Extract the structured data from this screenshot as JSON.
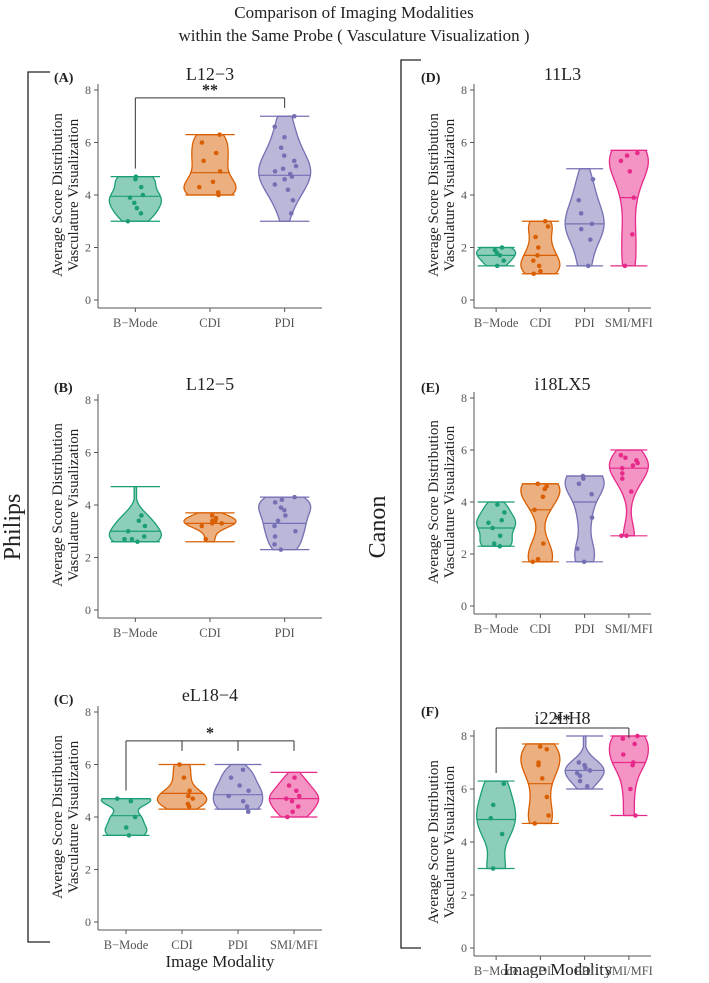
{
  "figure": {
    "title_line1": "Comparison of Imaging Modalities",
    "title_line2": "within the Same Probe ( Vasculature Visualization )",
    "left_group": "Philips",
    "right_group": "Canon",
    "ylabel_line1": "Average Score Distribution",
    "ylabel_line2": "Vasculature Visualization",
    "xlabel": "Image Modality"
  },
  "colors": {
    "B-Mode": "#1b9e77",
    "CDI": "#d95f02",
    "PDI": "#7570b3",
    "SMI/MFI": "#e7298a",
    "axis": "#555555",
    "text": "#222222"
  },
  "chart_data": [
    {
      "type": "violin",
      "panel": "(A)",
      "title": "L12−3",
      "ylim": [
        0,
        8
      ],
      "yticks": [
        0,
        2,
        4,
        6,
        8
      ],
      "categories": [
        "B−Mode",
        "CDI",
        "PDI"
      ],
      "series": [
        {
          "name": "B-Mode",
          "min": 3.0,
          "max": 4.7,
          "median": 3.95,
          "points": [
            3.0,
            3.3,
            3.5,
            3.7,
            3.9,
            4.0,
            4.3,
            4.6,
            4.7
          ]
        },
        {
          "name": "CDI",
          "min": 4.0,
          "max": 6.3,
          "median": 4.85,
          "points": [
            4.0,
            4.1,
            4.3,
            4.5,
            4.9,
            5.3,
            5.6,
            6.0,
            6.3
          ]
        },
        {
          "name": "PDI",
          "min": 3.0,
          "max": 7.0,
          "median": 4.75,
          "points": [
            3.3,
            3.8,
            4.2,
            4.4,
            4.6,
            4.7,
            4.8,
            4.9,
            5.0,
            5.1,
            5.3,
            5.5,
            5.8,
            6.2,
            6.6,
            7.0
          ]
        }
      ],
      "significance": [
        {
          "label": "**",
          "from": "B-Mode",
          "to": [
            "PDI"
          ],
          "level": 7.7
        }
      ]
    },
    {
      "type": "violin",
      "panel": "(B)",
      "title": "L12−5",
      "ylim": [
        0,
        8
      ],
      "yticks": [
        0,
        2,
        4,
        6,
        8
      ],
      "categories": [
        "B−Mode",
        "CDI",
        "PDI"
      ],
      "series": [
        {
          "name": "B-Mode",
          "min": 2.6,
          "max": 4.7,
          "median": 3.0,
          "points": [
            2.6,
            2.7,
            2.7,
            2.8,
            3.0,
            3.2,
            3.4,
            3.6
          ]
        },
        {
          "name": "CDI",
          "min": 2.6,
          "max": 3.7,
          "median": 3.3,
          "points": [
            2.7,
            3.2,
            3.3,
            3.3,
            3.4,
            3.4,
            3.5,
            3.6
          ]
        },
        {
          "name": "PDI",
          "min": 2.3,
          "max": 4.3,
          "median": 3.3,
          "points": [
            2.3,
            2.5,
            2.8,
            3.0,
            3.2,
            3.4,
            3.6,
            3.8,
            3.9,
            4.1,
            4.2,
            4.3
          ]
        }
      ],
      "significance": []
    },
    {
      "type": "violin",
      "panel": "(C)",
      "title": "eL18−4",
      "ylim": [
        0,
        8
      ],
      "yticks": [
        0,
        2,
        4,
        6,
        8
      ],
      "categories": [
        "B−Mode",
        "CDI",
        "PDI",
        "SMI/MFI"
      ],
      "series": [
        {
          "name": "B-Mode",
          "min": 3.3,
          "max": 4.7,
          "median": 4.05,
          "points": [
            3.3,
            3.6,
            4.0,
            4.6,
            4.7
          ]
        },
        {
          "name": "CDI",
          "min": 4.3,
          "max": 6.0,
          "median": 4.9,
          "points": [
            4.4,
            4.5,
            4.7,
            4.8,
            5.0,
            5.5,
            6.0
          ]
        },
        {
          "name": "PDI",
          "min": 4.3,
          "max": 6.0,
          "median": 4.85,
          "points": [
            4.2,
            4.4,
            4.6,
            4.8,
            5.0,
            5.2,
            5.5,
            5.8
          ]
        },
        {
          "name": "SMI/MFI",
          "min": 4.0,
          "max": 5.7,
          "median": 4.7,
          "points": [
            4.0,
            4.2,
            4.4,
            4.6,
            4.7,
            4.8,
            5.0,
            5.2,
            5.5
          ]
        }
      ],
      "significance": [
        {
          "label": "*",
          "from": "B-Mode",
          "to": [
            "CDI",
            "PDI",
            "SMI/MFI"
          ],
          "level": 6.9
        }
      ]
    },
    {
      "type": "violin",
      "panel": "(D)",
      "title": "11L3",
      "ylim": [
        0,
        8
      ],
      "yticks": [
        0,
        2,
        4,
        6,
        8
      ],
      "categories": [
        "B−Mode",
        "CDI",
        "PDI",
        "SMI/MFI"
      ],
      "series": [
        {
          "name": "B-Mode",
          "min": 1.3,
          "max": 2.0,
          "median": 1.7,
          "points": [
            1.3,
            1.5,
            1.7,
            1.8,
            1.9,
            2.0
          ]
        },
        {
          "name": "CDI",
          "min": 1.0,
          "max": 3.0,
          "median": 1.7,
          "points": [
            1.0,
            1.1,
            1.3,
            1.5,
            1.7,
            2.0,
            2.4,
            2.8,
            3.0
          ]
        },
        {
          "name": "PDI",
          "min": 1.3,
          "max": 5.0,
          "median": 2.9,
          "points": [
            1.3,
            2.3,
            2.7,
            2.9,
            3.3,
            3.8,
            4.6
          ]
        },
        {
          "name": "SMI/MFI",
          "min": 1.3,
          "max": 5.7,
          "median": 3.9,
          "points": [
            1.3,
            2.5,
            3.9,
            4.9,
            5.3,
            5.5,
            5.6
          ]
        }
      ],
      "significance": []
    },
    {
      "type": "violin",
      "panel": "(E)",
      "title": "i18LX5",
      "ylim": [
        0,
        8
      ],
      "yticks": [
        0,
        2,
        4,
        6,
        8
      ],
      "categories": [
        "B−Mode",
        "CDI",
        "PDI",
        "SMI/MFI"
      ],
      "series": [
        {
          "name": "B-Mode",
          "min": 2.3,
          "max": 4.0,
          "median": 3.0,
          "points": [
            2.3,
            2.4,
            2.7,
            3.0,
            3.2,
            3.3,
            3.6,
            3.9
          ]
        },
        {
          "name": "CDI",
          "min": 1.7,
          "max": 4.7,
          "median": 3.7,
          "points": [
            1.7,
            1.8,
            2.4,
            3.7,
            4.2,
            4.5,
            4.6,
            4.7
          ]
        },
        {
          "name": "PDI",
          "min": 1.7,
          "max": 5.0,
          "median": 4.0,
          "points": [
            1.7,
            2.2,
            3.4,
            4.3,
            4.7,
            4.9,
            5.0
          ]
        },
        {
          "name": "SMI/MFI",
          "min": 2.7,
          "max": 6.0,
          "median": 5.3,
          "points": [
            2.7,
            2.7,
            4.4,
            4.9,
            5.1,
            5.3,
            5.4,
            5.5,
            5.6,
            5.7,
            5.8
          ]
        }
      ],
      "significance": []
    },
    {
      "type": "violin",
      "panel": "(F)",
      "title": "i22LH8",
      "ylim": [
        0,
        8
      ],
      "yticks": [
        0,
        2,
        4,
        6,
        8
      ],
      "categories": [
        "B−Mode",
        "CDI",
        "PDI",
        "SMI/MFI"
      ],
      "series": [
        {
          "name": "B-Mode",
          "min": 3.0,
          "max": 6.3,
          "median": 4.85,
          "points": [
            3.0,
            4.3,
            4.9,
            5.4,
            6.2
          ]
        },
        {
          "name": "CDI",
          "min": 4.7,
          "max": 7.7,
          "median": 6.2,
          "points": [
            4.7,
            5.0,
            5.7,
            6.4,
            6.9,
            7.0,
            7.5,
            7.6
          ]
        },
        {
          "name": "PDI",
          "min": 6.0,
          "max": 8.0,
          "median": 6.7,
          "points": [
            6.1,
            6.3,
            6.5,
            6.6,
            6.7,
            6.8,
            6.9,
            7.0
          ]
        },
        {
          "name": "SMI/MFI",
          "min": 5.0,
          "max": 8.0,
          "median": 7.0,
          "points": [
            5.0,
            6.0,
            6.9,
            7.0,
            7.3,
            7.7,
            7.9,
            8.0
          ]
        }
      ],
      "significance": [
        {
          "label": "**",
          "from": "B-Mode",
          "to": [
            "SMI/MFI"
          ],
          "level": 8.3
        }
      ]
    }
  ]
}
